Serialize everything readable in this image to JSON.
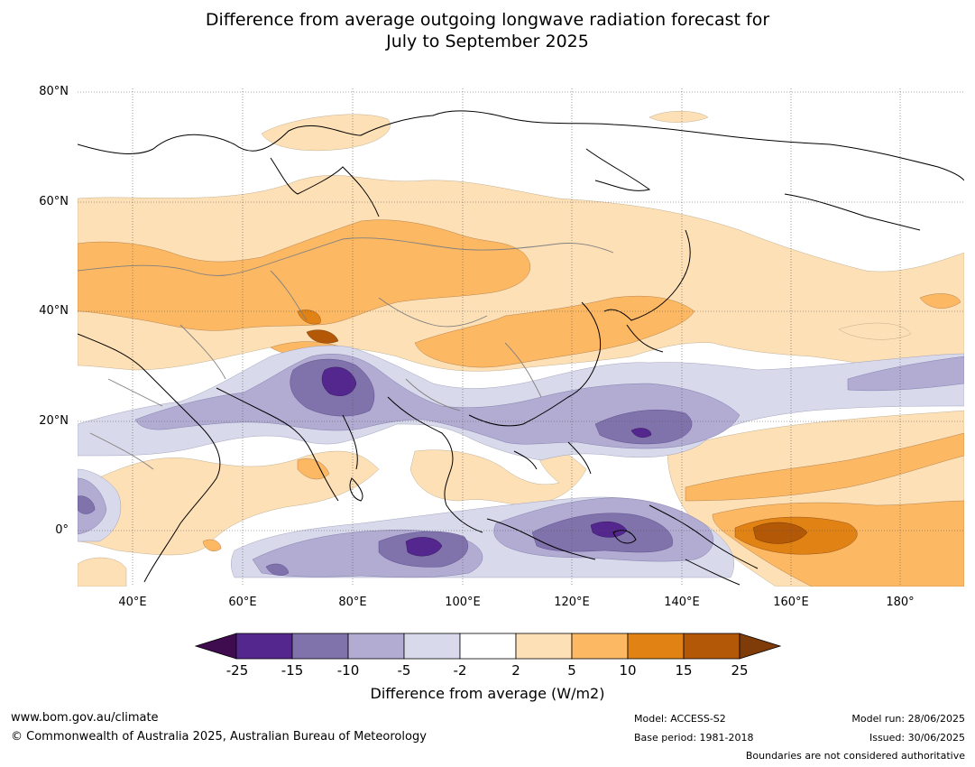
{
  "title": {
    "line1": "Difference from average outgoing longwave radiation forecast for",
    "line2": "July to September 2025"
  },
  "map": {
    "lat_labels": [
      "80°N",
      "60°N",
      "40°N",
      "20°N",
      "0°"
    ],
    "lon_labels": [
      "40°E",
      "60°E",
      "80°E",
      "100°E",
      "120°E",
      "140°E",
      "160°E",
      "180°"
    ],
    "colors": {
      "ocean": "#ffffff",
      "coast": "#000000",
      "border": "#808080",
      "grid": "#555555"
    }
  },
  "colorbar": {
    "ticks": [
      "-25",
      "-15",
      "-10",
      "-5",
      "-2",
      "2",
      "5",
      "10",
      "15",
      "25"
    ],
    "colors": [
      "#3f0d4f",
      "#54278f",
      "#8073ac",
      "#b2abd2",
      "#d8daeb",
      "#ffffff",
      "#fee0b6",
      "#fdb863",
      "#e08214",
      "#b35806",
      "#7f3b08"
    ],
    "label": "Difference from average (W/m2)"
  },
  "footer": {
    "website": "www.bom.gov.au/climate",
    "copyright": "© Commonwealth of Australia 2025, Australian Bureau of Meteorology",
    "model": "Model: ACCESS-S2",
    "base_period": "Base period: 1981-2018",
    "model_run": "Model run: 28/06/2025",
    "issued": "Issued: 30/06/2025",
    "disclaimer": "Boundaries are not considered authoritative"
  }
}
